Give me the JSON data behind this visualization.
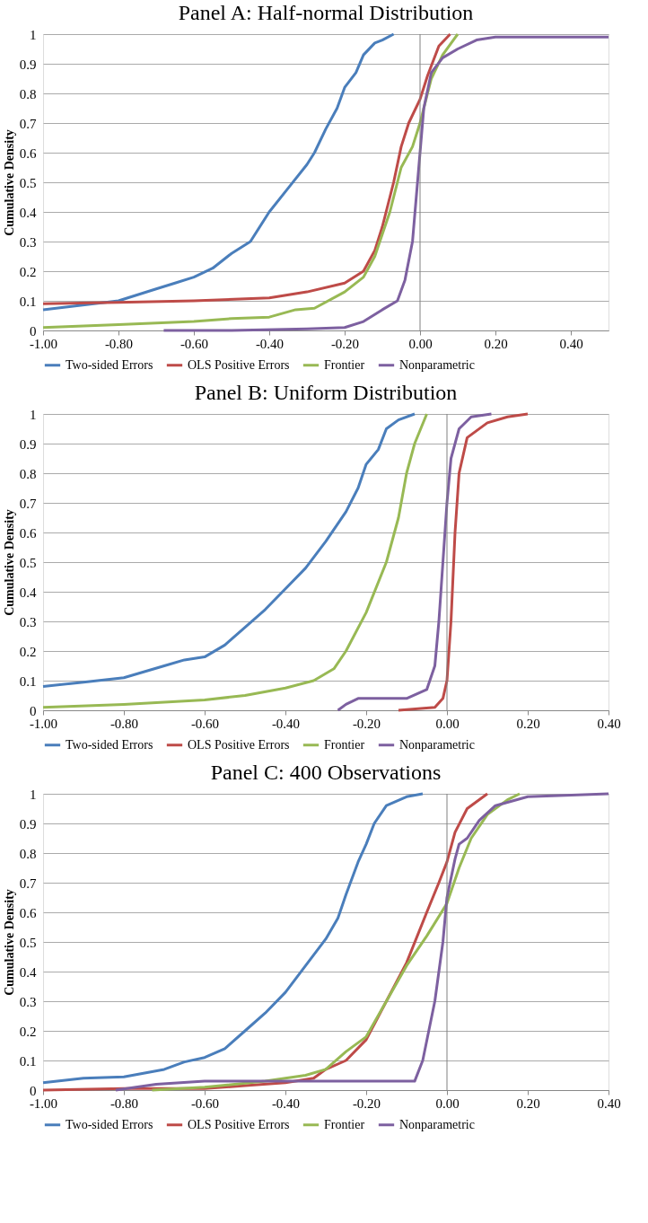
{
  "chart_data": [
    {
      "type": "line",
      "title": "Panel A: Half-normal Distribution",
      "ylabel": "Cumulative Density",
      "xlim": [
        -1.0,
        0.5
      ],
      "xticks": [
        {
          "value": -1.0,
          "label": "-1.00"
        },
        {
          "value": -0.8,
          "label": "-0.80"
        },
        {
          "value": -0.6,
          "label": "-0.60"
        },
        {
          "value": -0.4,
          "label": "-0.40"
        },
        {
          "value": -0.2,
          "label": "-0.20"
        },
        {
          "value": 0,
          "label": "0.00"
        },
        {
          "value": 0.2,
          "label": "0.20"
        },
        {
          "value": 0.4,
          "label": "0.40"
        }
      ],
      "ylim": [
        0,
        1
      ],
      "yticks": [
        0,
        0.1,
        0.2,
        0.3,
        0.4,
        0.5,
        0.6,
        0.7,
        0.8,
        0.9,
        1
      ],
      "grid": "y",
      "legend": "bottom",
      "line_style": "solid",
      "ref_lines": [
        {
          "axis": "x",
          "value": 0,
          "color": "#808080"
        }
      ],
      "series": [
        {
          "name": "Two-sided Errors",
          "color": "#4a7ebb",
          "x": [
            -1.0,
            -0.9,
            -0.8,
            -0.7,
            -0.65,
            -0.6,
            -0.55,
            -0.5,
            -0.45,
            -0.4,
            -0.35,
            -0.3,
            -0.28,
            -0.25,
            -0.22,
            -0.2,
            -0.17,
            -0.15,
            -0.12,
            -0.1,
            -0.07
          ],
          "values": [
            0.07,
            0.085,
            0.1,
            0.14,
            0.16,
            0.18,
            0.21,
            0.26,
            0.3,
            0.4,
            0.48,
            0.56,
            0.6,
            0.68,
            0.75,
            0.82,
            0.87,
            0.93,
            0.97,
            0.98,
            1.0
          ]
        },
        {
          "name": "OLS Positive Errors",
          "color": "#be4b48",
          "x": [
            -1.0,
            -0.8,
            -0.6,
            -0.4,
            -0.3,
            -0.2,
            -0.15,
            -0.12,
            -0.1,
            -0.07,
            -0.05,
            -0.03,
            0.0,
            0.02,
            0.05,
            0.08
          ],
          "values": [
            0.09,
            0.095,
            0.1,
            0.11,
            0.13,
            0.16,
            0.2,
            0.27,
            0.35,
            0.5,
            0.62,
            0.7,
            0.78,
            0.86,
            0.96,
            1.0
          ]
        },
        {
          "name": "Frontier",
          "color": "#98b954",
          "x": [
            -1.0,
            -0.8,
            -0.6,
            -0.5,
            -0.4,
            -0.33,
            -0.28,
            -0.2,
            -0.15,
            -0.12,
            -0.08,
            -0.05,
            -0.02,
            0.0,
            0.03,
            0.06,
            0.1
          ],
          "values": [
            0.01,
            0.02,
            0.03,
            0.04,
            0.045,
            0.07,
            0.075,
            0.13,
            0.18,
            0.25,
            0.4,
            0.55,
            0.62,
            0.7,
            0.85,
            0.93,
            1.0
          ]
        },
        {
          "name": "Nonparametric",
          "color": "#7d60a0",
          "x": [
            -0.68,
            -0.5,
            -0.3,
            -0.2,
            -0.15,
            -0.1,
            -0.06,
            -0.04,
            -0.02,
            -0.01,
            0.0,
            0.01,
            0.03,
            0.06,
            0.1,
            0.15,
            0.2,
            0.3,
            0.5
          ],
          "values": [
            0.0,
            0.0,
            0.005,
            0.01,
            0.03,
            0.07,
            0.1,
            0.17,
            0.3,
            0.45,
            0.6,
            0.75,
            0.87,
            0.92,
            0.95,
            0.98,
            0.99,
            0.99,
            0.99
          ]
        }
      ]
    },
    {
      "type": "line",
      "title": "Panel B: Uniform Distribution",
      "ylabel": "Cumulative Density",
      "xlim": [
        -1.0,
        0.4
      ],
      "xticks": [
        {
          "value": -1.0,
          "label": "-1.00"
        },
        {
          "value": -0.8,
          "label": "-0.80"
        },
        {
          "value": -0.6,
          "label": "-0.60"
        },
        {
          "value": -0.4,
          "label": "-0.40"
        },
        {
          "value": -0.2,
          "label": "-0.20"
        },
        {
          "value": 0,
          "label": "0.00"
        },
        {
          "value": 0.2,
          "label": "0.20"
        },
        {
          "value": 0.4,
          "label": "0.40"
        }
      ],
      "ylim": [
        0,
        1
      ],
      "yticks": [
        0,
        0.1,
        0.2,
        0.3,
        0.4,
        0.5,
        0.6,
        0.7,
        0.8,
        0.9,
        1
      ],
      "grid": "y",
      "legend": "bottom",
      "line_style": "solid",
      "ref_lines": [
        {
          "axis": "x",
          "value": 0,
          "color": "#808080"
        }
      ],
      "series": [
        {
          "name": "Two-sided Errors",
          "color": "#4a7ebb",
          "x": [
            -1.0,
            -0.9,
            -0.8,
            -0.7,
            -0.65,
            -0.6,
            -0.55,
            -0.5,
            -0.45,
            -0.4,
            -0.35,
            -0.3,
            -0.25,
            -0.22,
            -0.2,
            -0.17,
            -0.15,
            -0.12,
            -0.08
          ],
          "values": [
            0.08,
            0.095,
            0.11,
            0.15,
            0.17,
            0.18,
            0.22,
            0.28,
            0.34,
            0.41,
            0.48,
            0.57,
            0.67,
            0.75,
            0.83,
            0.88,
            0.95,
            0.98,
            1.0
          ]
        },
        {
          "name": "OLS Positive Errors",
          "color": "#be4b48",
          "x": [
            -0.12,
            -0.03,
            -0.01,
            0.0,
            0.01,
            0.02,
            0.03,
            0.05,
            0.1,
            0.15,
            0.2
          ],
          "values": [
            0.0,
            0.01,
            0.04,
            0.1,
            0.3,
            0.6,
            0.8,
            0.92,
            0.97,
            0.99,
            1.0
          ]
        },
        {
          "name": "Frontier",
          "color": "#98b954",
          "x": [
            -1.0,
            -0.8,
            -0.6,
            -0.5,
            -0.4,
            -0.33,
            -0.28,
            -0.25,
            -0.2,
            -0.15,
            -0.12,
            -0.1,
            -0.08,
            -0.05
          ],
          "values": [
            0.01,
            0.02,
            0.035,
            0.05,
            0.075,
            0.1,
            0.14,
            0.2,
            0.33,
            0.5,
            0.65,
            0.8,
            0.9,
            1.0
          ]
        },
        {
          "name": "Nonparametric",
          "color": "#7d60a0",
          "x": [
            -0.27,
            -0.25,
            -0.22,
            -0.1,
            -0.05,
            -0.03,
            -0.02,
            -0.01,
            0.0,
            0.01,
            0.03,
            0.06,
            0.11
          ],
          "values": [
            0.0,
            0.02,
            0.04,
            0.04,
            0.07,
            0.15,
            0.3,
            0.5,
            0.7,
            0.85,
            0.95,
            0.99,
            1.0
          ]
        }
      ]
    },
    {
      "type": "line",
      "title": "Panel C: 400 Observations",
      "ylabel": "Cumulative Density",
      "xlim": [
        -1.0,
        0.4
      ],
      "xticks": [
        {
          "value": -1.0,
          "label": "-1.00"
        },
        {
          "value": -0.8,
          "label": "-0.80"
        },
        {
          "value": -0.6,
          "label": "-0.60"
        },
        {
          "value": -0.4,
          "label": "-0.40"
        },
        {
          "value": -0.2,
          "label": "-0.20"
        },
        {
          "value": 0,
          "label": "0.00"
        },
        {
          "value": 0.2,
          "label": "0.20"
        },
        {
          "value": 0.4,
          "label": "0.40"
        }
      ],
      "ylim": [
        0,
        1
      ],
      "yticks": [
        0,
        0.1,
        0.2,
        0.3,
        0.4,
        0.5,
        0.6,
        0.7,
        0.8,
        0.9,
        1
      ],
      "grid": "y",
      "legend": "bottom",
      "line_style": "solid",
      "ref_lines": [
        {
          "axis": "x",
          "value": 0,
          "color": "#808080"
        }
      ],
      "series": [
        {
          "name": "Two-sided Errors",
          "color": "#4a7ebb",
          "x": [
            -1.0,
            -0.9,
            -0.8,
            -0.7,
            -0.65,
            -0.6,
            -0.55,
            -0.5,
            -0.45,
            -0.4,
            -0.35,
            -0.3,
            -0.27,
            -0.25,
            -0.22,
            -0.2,
            -0.18,
            -0.15,
            -0.1,
            -0.06
          ],
          "values": [
            0.025,
            0.04,
            0.045,
            0.07,
            0.095,
            0.11,
            0.14,
            0.2,
            0.26,
            0.33,
            0.42,
            0.51,
            0.58,
            0.66,
            0.77,
            0.83,
            0.9,
            0.96,
            0.99,
            1.0
          ]
        },
        {
          "name": "OLS Positive Errors",
          "color": "#be4b48",
          "x": [
            -1.0,
            -0.8,
            -0.6,
            -0.5,
            -0.4,
            -0.33,
            -0.3,
            -0.25,
            -0.2,
            -0.15,
            -0.1,
            -0.05,
            -0.02,
            0.0,
            0.02,
            0.05,
            0.1
          ],
          "values": [
            0.0,
            0.005,
            0.005,
            0.015,
            0.025,
            0.04,
            0.07,
            0.1,
            0.17,
            0.3,
            0.43,
            0.6,
            0.7,
            0.77,
            0.87,
            0.95,
            1.0
          ]
        },
        {
          "name": "Frontier",
          "color": "#98b954",
          "x": [
            -0.73,
            -0.6,
            -0.45,
            -0.35,
            -0.3,
            -0.25,
            -0.2,
            -0.15,
            -0.1,
            -0.05,
            0.0,
            0.03,
            0.06,
            0.1,
            0.15,
            0.18
          ],
          "values": [
            0.0,
            0.01,
            0.03,
            0.05,
            0.07,
            0.13,
            0.18,
            0.3,
            0.42,
            0.52,
            0.63,
            0.75,
            0.85,
            0.93,
            0.98,
            1.0
          ]
        },
        {
          "name": "Nonparametric",
          "color": "#7d60a0",
          "x": [
            -0.82,
            -0.72,
            -0.6,
            -0.4,
            -0.2,
            -0.08,
            -0.06,
            -0.03,
            -0.01,
            0.0,
            0.02,
            0.03,
            0.05,
            0.08,
            0.12,
            0.2,
            0.4
          ],
          "values": [
            0.0,
            0.02,
            0.03,
            0.03,
            0.03,
            0.03,
            0.1,
            0.3,
            0.5,
            0.65,
            0.78,
            0.83,
            0.85,
            0.91,
            0.96,
            0.99,
            1.0
          ]
        }
      ]
    }
  ]
}
